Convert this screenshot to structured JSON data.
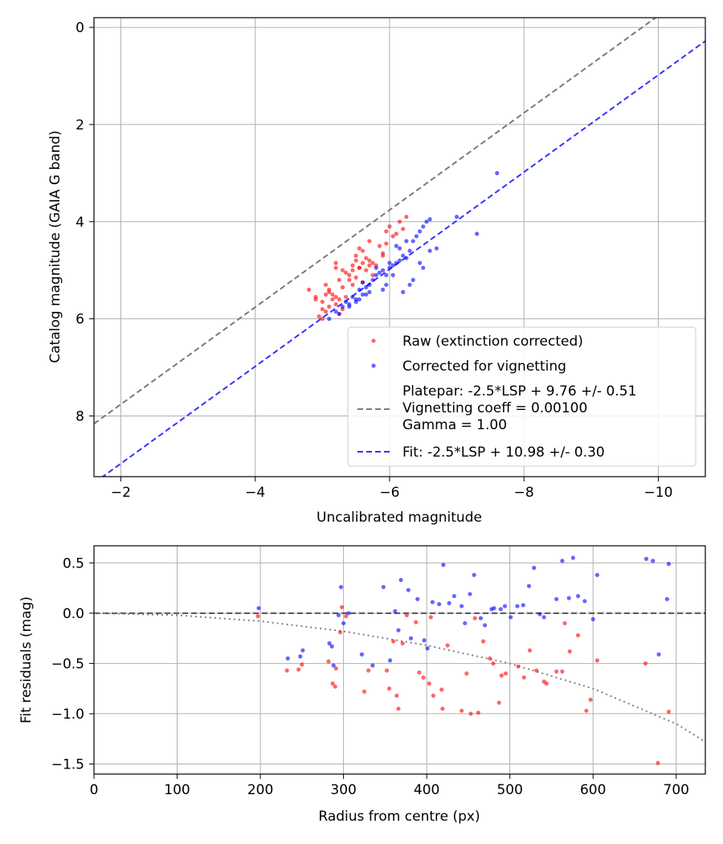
{
  "chart_data": [
    {
      "type": "scatter",
      "xlabel": "Uncalibrated magnitude",
      "ylabel": "Catalog magnitude (GAIA G band)",
      "xlim": [
        -1.6,
        -10.7
      ],
      "ylim": [
        9.25,
        -0.2
      ],
      "x_inverted": true,
      "y_inverted": true,
      "xticks": [
        -2,
        -4,
        -6,
        -8,
        -10
      ],
      "xtick_labels": [
        "−2",
        "−4",
        "−6",
        "−8",
        "−10"
      ],
      "yticks": [
        0,
        2,
        4,
        6,
        8
      ],
      "ytick_labels": [
        "0",
        "2",
        "4",
        "6",
        "8"
      ],
      "grid": true,
      "legend_position": "bottom-right",
      "series": [
        {
          "name": "Raw (extinction corrected)",
          "kind": "scatter",
          "color": "#ff0000",
          "x": [
            -4.8,
            -4.9,
            -5.0,
            -4.95,
            -5.05,
            -5.1,
            -5.15,
            -5.2,
            -5.05,
            -5.25,
            -5.3,
            -5.2,
            -5.35,
            -5.4,
            -5.45,
            -5.1,
            -5.0,
            -5.3,
            -5.25,
            -5.45,
            -5.5,
            -5.55,
            -5.6,
            -5.5,
            -5.65,
            -5.7,
            -5.55,
            -5.75,
            -5.8,
            -5.6,
            -5.9,
            -5.85,
            -5.7,
            -5.95,
            -5.5,
            -5.4,
            -5.3,
            -5.2,
            -5.15,
            -5.35,
            -5.45,
            -5.6,
            -5.75,
            -5.95,
            -6.0,
            -6.05,
            -6.1,
            -6.2,
            -6.25,
            -6.15,
            -5.9,
            -5.65,
            -5.55,
            -5.25,
            -5.1,
            -5.05,
            -5.0,
            -4.9,
            -5.2,
            -5.7
          ],
          "y": [
            5.4,
            5.6,
            5.8,
            5.95,
            5.5,
            5.45,
            5.6,
            5.7,
            5.3,
            5.2,
            5.35,
            5.55,
            5.05,
            5.1,
            5.0,
            5.4,
            5.65,
            5.8,
            5.9,
            4.9,
            4.8,
            4.95,
            4.85,
            4.7,
            4.75,
            4.8,
            4.55,
            4.85,
            4.9,
            4.6,
            4.7,
            4.5,
            4.4,
            4.45,
            5.15,
            5.2,
            5.0,
            4.95,
            5.5,
            5.55,
            5.3,
            5.25,
            5.1,
            4.2,
            4.1,
            4.3,
            4.25,
            4.15,
            3.9,
            4.0,
            4.65,
            5.0,
            4.95,
            5.6,
            5.75,
            5.85,
            6.0,
            5.55,
            4.85,
            4.9
          ]
        },
        {
          "name": "Corrected for vignetting",
          "kind": "scatter",
          "color": "#0000ff",
          "x": [
            -5.1,
            -5.2,
            -5.3,
            -5.25,
            -5.4,
            -5.5,
            -5.35,
            -5.45,
            -5.6,
            -5.55,
            -5.65,
            -5.7,
            -5.75,
            -5.8,
            -5.6,
            -5.85,
            -5.9,
            -5.95,
            -6.0,
            -6.05,
            -5.95,
            -6.1,
            -6.15,
            -6.2,
            -6.25,
            -6.3,
            -6.1,
            -6.35,
            -6.4,
            -6.45,
            -6.5,
            -6.55,
            -6.6,
            -6.25,
            -6.15,
            -6.0,
            -5.8,
            -5.7,
            -5.5,
            -5.4,
            -6.3,
            -6.5,
            -6.7,
            -7.3,
            -7.0,
            -7.6,
            -6.05,
            -5.9,
            -5.65,
            -5.55,
            -6.45,
            -6.6,
            -6.35,
            -6.2
          ],
          "y": [
            6.0,
            5.85,
            5.75,
            5.9,
            5.7,
            5.6,
            5.65,
            5.55,
            5.5,
            5.4,
            5.35,
            5.3,
            5.2,
            5.1,
            5.25,
            5.05,
            5.0,
            5.1,
            4.95,
            4.9,
            5.3,
            4.85,
            4.8,
            4.7,
            4.75,
            4.6,
            4.5,
            4.4,
            4.3,
            4.2,
            4.1,
            4.0,
            3.95,
            4.4,
            4.55,
            4.85,
            4.95,
            5.45,
            5.65,
            5.75,
            5.3,
            4.95,
            4.55,
            4.25,
            3.9,
            3.0,
            5.1,
            5.4,
            5.5,
            5.6,
            4.85,
            4.6,
            5.2,
            5.45
          ]
        },
        {
          "name": "Platepar: -2.5*LSP + 9.76 +/- 0.51\nVignetting coeff = 0.00100\nGamma = 1.00",
          "kind": "line",
          "style": "dashed",
          "color": "#7a7a7a",
          "x": [
            -1.6,
            -10.7
          ],
          "y": [
            8.16,
            -0.94
          ]
        },
        {
          "name": "Fit: -2.5*LSP + 10.98 +/- 0.30",
          "kind": "line",
          "style": "dashed",
          "color": "#3333ff",
          "x": [
            -1.6,
            -10.7
          ],
          "y": [
            9.38,
            0.28
          ]
        }
      ]
    },
    {
      "type": "scatter",
      "xlabel": "Radius from centre (px)",
      "ylabel": "Fit residuals (mag)",
      "xlim": [
        0,
        735
      ],
      "ylim": [
        -1.6,
        0.67
      ],
      "xticks": [
        0,
        100,
        200,
        300,
        400,
        500,
        600,
        700
      ],
      "xtick_labels": [
        "0",
        "100",
        "200",
        "300",
        "400",
        "500",
        "600",
        "700"
      ],
      "yticks": [
        0.5,
        0.0,
        -0.5,
        -1.0,
        -1.5
      ],
      "ytick_labels": [
        "0.5",
        "0.0",
        "−0.5",
        "−1.0",
        "−1.5"
      ],
      "grid": true,
      "series": [
        {
          "kind": "scatter",
          "color": "#ff0000",
          "x": [
            197,
            232,
            246,
            250,
            282,
            287,
            290,
            291,
            296,
            298,
            303,
            325,
            330,
            352,
            355,
            360,
            364,
            366,
            371,
            376,
            387,
            391,
            396,
            403,
            405,
            408,
            418,
            419,
            425,
            442,
            448,
            453,
            458,
            462,
            468,
            476,
            480,
            487,
            490,
            495,
            510,
            517,
            524,
            532,
            541,
            544,
            556,
            563,
            566,
            572,
            582,
            592,
            597,
            605,
            663,
            678,
            691
          ],
          "x_note": "",
          "y": [
            -0.03,
            -0.57,
            -0.56,
            -0.51,
            -0.48,
            -0.7,
            -0.73,
            -0.55,
            -0.19,
            0.06,
            -0.03,
            -0.78,
            -0.57,
            -0.57,
            -0.75,
            -0.28,
            -0.82,
            -0.95,
            -0.3,
            -0.02,
            -0.09,
            -0.59,
            -0.64,
            -0.7,
            -0.04,
            -0.82,
            -0.76,
            -0.95,
            -0.32,
            -0.97,
            -0.6,
            -1.0,
            -0.05,
            -0.99,
            -0.28,
            -0.45,
            -0.5,
            -0.89,
            -0.62,
            -0.6,
            -0.53,
            -0.64,
            -0.37,
            -0.57,
            -0.68,
            -0.7,
            -0.58,
            -0.58,
            -0.1,
            -0.38,
            -0.22,
            -0.97,
            -0.86,
            -0.47,
            -0.5,
            -1.49,
            -0.98
          ],
          "x_extra": [],
          "y_extra": []
        },
        {
          "kind": "scatter",
          "color": "#0000ff",
          "x": [
            198,
            233,
            248,
            251,
            283,
            286,
            288,
            294,
            297,
            300,
            306,
            322,
            335,
            348,
            356,
            362,
            366,
            369,
            378,
            381,
            389,
            397,
            401,
            407,
            415,
            420,
            427,
            433,
            442,
            446,
            452,
            457,
            465,
            470,
            478,
            481,
            489,
            494,
            501,
            509,
            516,
            523,
            529,
            536,
            541,
            556,
            563,
            571,
            576,
            582,
            590,
            600,
            605,
            664,
            672,
            679,
            689,
            691
          ],
          "y": [
            0.05,
            -0.45,
            -0.43,
            -0.37,
            -0.3,
            -0.33,
            -0.52,
            -0.02,
            0.26,
            -0.1,
            0.0,
            -0.41,
            -0.52,
            0.26,
            -0.47,
            0.02,
            -0.17,
            0.33,
            0.23,
            -0.25,
            0.14,
            -0.27,
            -0.35,
            0.11,
            0.09,
            0.48,
            0.1,
            0.17,
            0.07,
            -0.1,
            0.19,
            0.38,
            -0.05,
            -0.12,
            0.04,
            0.05,
            0.04,
            0.07,
            -0.04,
            0.07,
            0.08,
            0.27,
            0.45,
            -0.01,
            -0.04,
            0.14,
            0.52,
            0.15,
            0.55,
            0.17,
            0.12,
            -0.06,
            0.38,
            0.54,
            0.52,
            -0.41,
            0.14,
            0.49
          ]
        },
        {
          "kind": "line",
          "style": "dashed",
          "color": "#555555",
          "x": [
            0,
            735
          ],
          "y": [
            0,
            0
          ]
        },
        {
          "kind": "curve",
          "style": "dotted",
          "color": "#808080",
          "x": [
            0,
            100,
            200,
            300,
            400,
            500,
            600,
            700,
            735
          ],
          "y": [
            0.0,
            -0.02,
            -0.08,
            -0.18,
            -0.32,
            -0.5,
            -0.75,
            -1.1,
            -1.28
          ]
        }
      ]
    }
  ]
}
